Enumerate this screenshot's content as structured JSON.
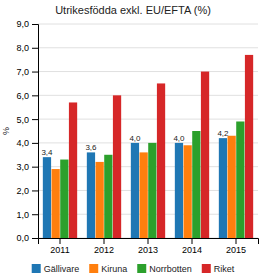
{
  "chart_data": {
    "type": "bar",
    "title": "Utrikesfödda exkl. EU/EFTA (%)",
    "y_label": "%",
    "categories": [
      "2011",
      "2012",
      "2013",
      "2014",
      "2015"
    ],
    "series": [
      {
        "name": "Gällivare",
        "values": [
          3.4,
          3.6,
          4.0,
          4.0,
          4.2
        ],
        "data_labels": true,
        "value_labels": [
          "3,4",
          "3,6",
          "4,0",
          "4,0",
          "4,2"
        ]
      },
      {
        "name": "Kiruna",
        "values": [
          2.9,
          3.2,
          3.6,
          3.9,
          4.3
        ]
      },
      {
        "name": "Norrbotten",
        "values": [
          3.3,
          3.5,
          4.0,
          4.5,
          4.9
        ]
      },
      {
        "name": "Riket",
        "values": [
          5.7,
          6.0,
          6.5,
          7.0,
          7.7
        ]
      }
    ],
    "ylim": [
      0.0,
      9.0
    ],
    "yticks": [
      {
        "value": 0.0,
        "label": "0,0"
      },
      {
        "value": 1.0,
        "label": "1,0"
      },
      {
        "value": 2.0,
        "label": "2,0"
      },
      {
        "value": 3.0,
        "label": "3,0"
      },
      {
        "value": 4.0,
        "label": "4,0"
      },
      {
        "value": 5.0,
        "label": "5,0"
      },
      {
        "value": 6.0,
        "label": "6,0"
      },
      {
        "value": 7.0,
        "label": "7,0"
      },
      {
        "value": 8.0,
        "label": "8,0"
      },
      {
        "value": 9.0,
        "label": "9,0"
      }
    ],
    "grid": true,
    "legend": "bottom"
  }
}
